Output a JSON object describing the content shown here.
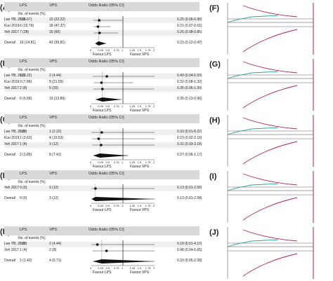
{
  "columns": {
    "lps": "LPS",
    "vps": "VPS",
    "or": "Odds Ratio (95% CI)",
    "no_events": "No. of events (%)"
  },
  "favour": {
    "left": "Favour LPS",
    "right": "Favour VPS"
  },
  "ticks": [
    "0",
    "0.25",
    "0.5",
    "0.75",
    "1",
    "1.25",
    "1.5",
    "1.75",
    "2"
  ],
  "panels": [
    {
      "letter": "(A)",
      "rows": [
        {
          "study": "Lee YB, 2020",
          "lps": "3 (6.67)",
          "vps": "10 (22.22)",
          "or_text": "0.25 (0.06-0.98)",
          "or": 0.25,
          "lo": 0.06,
          "hi": 0.98
        },
        {
          "study": "Kuo 2019",
          "lps": "6 (15.79)",
          "vps": "18 (47.37)",
          "or_text": "0.21 (0.07-0.61)",
          "or": 0.21,
          "lo": 0.07,
          "hi": 0.61
        },
        {
          "study": "Yeh 2017",
          "lps": "7 (28)",
          "vps": "15 (60)",
          "or_text": "0.26 (0.08-0.85)",
          "or": 0.26,
          "lo": 0.08,
          "hi": 0.85
        }
      ],
      "overall": {
        "study": "Overall",
        "lps": "16 (14.81)",
        "vps": "43 (39.81)",
        "or_text": "0.23 (0.12-0.47)",
        "or": 0.23,
        "lo": 0.12,
        "hi": 0.47
      }
    },
    {
      "letter": "(B)",
      "rows": [
        {
          "study": "Lee YB, 2020",
          "lps": "1 (2.22)",
          "vps": "2 (4.44)",
          "or_text": "0.49 (0.04-5.59)",
          "or": 0.49,
          "lo": 0.04,
          "hi": 5.59
        },
        {
          "study": "Kuo 2019",
          "lps": "3 (7.89)",
          "vps": "8 (21.05)",
          "or_text": "0.32 (0.08-1.32)",
          "or": 0.32,
          "lo": 0.08,
          "hi": 1.32
        },
        {
          "study": "Yeh 2017",
          "lps": "2 (8)",
          "vps": "5 (20)",
          "or_text": "0.35 (0.06-1.99)",
          "or": 0.35,
          "lo": 0.06,
          "hi": 1.99
        }
      ],
      "overall": {
        "study": "Overall",
        "lps": "6 (5.56)",
        "vps": "15 (13.89)",
        "or_text": "0.35 (0.13-0.96)",
        "or": 0.35,
        "lo": 0.13,
        "hi": 0.96
      }
    },
    {
      "letter": "(C)",
      "rows": [
        {
          "study": "Lee YB, 2020",
          "lps": "0 (0)",
          "vps": "1 (2.22)",
          "or_text": "0.33 (0.01-8.22)",
          "or": 0.33,
          "lo": 0.01,
          "hi": 8.22
        },
        {
          "study": "Kuo 2019",
          "lps": "1 (2.63)",
          "vps": "4 (10.53)",
          "or_text": "0.23 (0.02-2.16)",
          "or": 0.23,
          "lo": 0.02,
          "hi": 2.16
        },
        {
          "study": "Yeh 2017",
          "lps": "1 (4)",
          "vps": "3 (12)",
          "or_text": "0.31 (0.03-3.18)",
          "or": 0.31,
          "lo": 0.03,
          "hi": 3.18
        }
      ],
      "overall": {
        "study": "Overall",
        "lps": "2 (1.85)",
        "vps": "8 (7.41)",
        "or_text": "0.27 (0.06-1.17)",
        "or": 0.27,
        "lo": 0.06,
        "hi": 1.17
      }
    },
    {
      "letter": "(D)",
      "rows": [
        {
          "study": "Yeh 2017",
          "lps": "0 (0)",
          "vps": "3 (12)",
          "or_text": "0.13 (0.01-2.58)",
          "or": 0.13,
          "lo": 0.01,
          "hi": 2.58
        }
      ],
      "overall": {
        "study": "Overall",
        "lps": "0 (0)",
        "vps": "3 (12)",
        "or_text": "0.13 (0.01-2.58)",
        "or": 0.13,
        "lo": 0.01,
        "hi": 2.58
      }
    },
    {
      "letter": "(E)",
      "rows": [
        {
          "study": "Lee YB, 2020",
          "lps": "0 (0)",
          "vps": "2 (4.44)",
          "or_text": "0.19 (0.01-4.10)",
          "or": 0.19,
          "lo": 0.01,
          "hi": 4.1
        },
        {
          "study": "Yeh 2017",
          "lps": "1 (4)",
          "vps": "2 (8)",
          "or_text": "0.48 (0.04-5.65)",
          "or": 0.48,
          "lo": 0.04,
          "hi": 5.65
        }
      ],
      "overall": {
        "study": "Overall",
        "lps": "1 (1.43)",
        "vps": "4 (5.71)",
        "or_text": "0.33 (0.05-2.28)",
        "or": 0.33,
        "lo": 0.05,
        "hi": 2.28
      }
    }
  ],
  "tsa_panels": [
    {
      "letter": "(F)"
    },
    {
      "letter": "(G)"
    },
    {
      "letter": "(H)"
    },
    {
      "letter": "(I)"
    },
    {
      "letter": "(J)"
    }
  ]
}
